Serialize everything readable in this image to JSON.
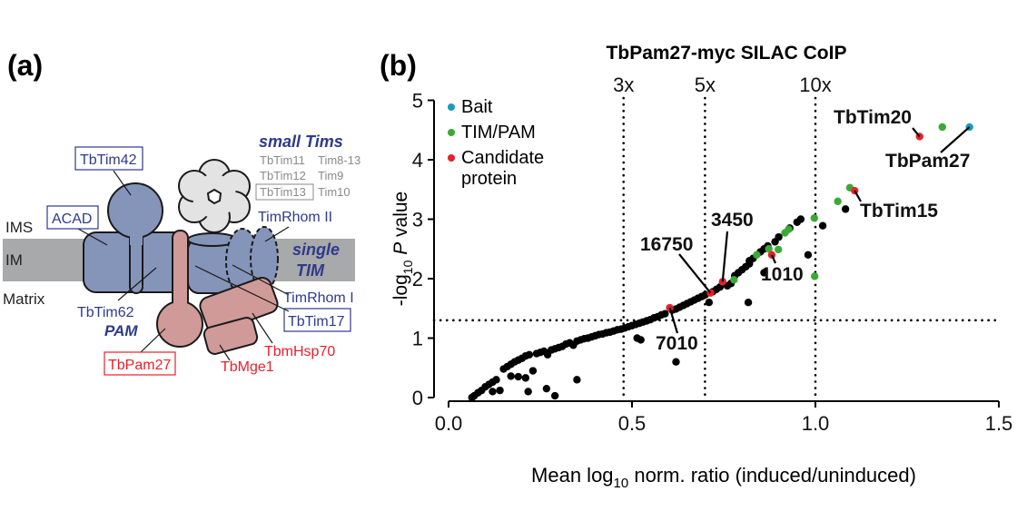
{
  "panel_a": {
    "label": "(a)",
    "compartments": {
      "ims": "IMS",
      "im": "IM",
      "matrix": "Matrix"
    },
    "proteins": {
      "tbtim42": "TbTim42",
      "acad": "ACAD",
      "tbtim62": "TbTim62",
      "pam": "PAM",
      "tbpam27": "TbPam27",
      "tbmge1": "TbMge1",
      "tbmhsp70": "TbmHsp70",
      "tbtim17": "TbTim17",
      "timrhom1": "TimRhom I",
      "timrhom2": "TimRhom II",
      "single_tim": [
        "single",
        "TIM"
      ],
      "small_tims": "small Tims",
      "small_tim_rows": [
        [
          "TbTim11",
          "Tim8-13"
        ],
        [
          "TbTim12",
          "Tim9"
        ],
        [
          "TbTim13",
          "Tim10"
        ]
      ]
    },
    "colors": {
      "membrane": "#a7a9ab",
      "complex": "#8594b9",
      "pam": "#cf9a98",
      "small_tims": "#e3e3e3",
      "blue_text": "#2e3a8c",
      "red_text": "#e8202a"
    }
  },
  "chart_data": {
    "type": "scatter",
    "panel_label": "(b)",
    "title": "TbPam27-myc SILAC CoIP",
    "xlabel": {
      "pre": "Mean log",
      "sub": "10",
      "post": " norm. ratio (induced/uninduced)"
    },
    "ylabel": {
      "pre": "-log",
      "sub": "10",
      "italic": "P",
      "post": " value"
    },
    "xlim": [
      0,
      1.5
    ],
    "ylim": [
      0,
      5
    ],
    "xticks": [
      "0.0",
      "0.5",
      "1.0",
      "1.5"
    ],
    "xtick_values": [
      0,
      0.5,
      1.0,
      1.5
    ],
    "yticks": [
      "0",
      "1",
      "2",
      "3",
      "4",
      "5"
    ],
    "ytick_values": [
      0,
      1,
      2,
      3,
      4,
      5
    ],
    "reference_lines": {
      "vertical": [
        {
          "x": 0.477,
          "label": "3x"
        },
        {
          "x": 0.699,
          "label": "5x"
        },
        {
          "x": 1.0,
          "label": "10x"
        }
      ],
      "horizontal": [
        {
          "y": 1.3
        }
      ]
    },
    "legend": {
      "position": "top-left",
      "entries": [
        {
          "label": "Bait",
          "color": "#1a9bbf"
        },
        {
          "label": "TIM/PAM",
          "color": "#3aaa35"
        },
        {
          "label": "Candidate protein",
          "label_lines": [
            "Candidate",
            "protein"
          ],
          "color": "#e8202a"
        }
      ]
    },
    "series": [
      {
        "category": "other",
        "color": "#000000",
        "points": [
          [
            0.064,
            0.0
          ],
          [
            0.07,
            0.03
          ],
          [
            0.08,
            0.08
          ],
          [
            0.09,
            0.12
          ],
          [
            0.1,
            0.18
          ],
          [
            0.11,
            0.22
          ],
          [
            0.12,
            0.26
          ],
          [
            0.13,
            0.3
          ],
          [
            0.12,
            0.1
          ],
          [
            0.14,
            0.12
          ],
          [
            0.15,
            0.48
          ],
          [
            0.16,
            0.52
          ],
          [
            0.17,
            0.56
          ],
          [
            0.18,
            0.6
          ],
          [
            0.19,
            0.63
          ],
          [
            0.2,
            0.66
          ],
          [
            0.21,
            0.7
          ],
          [
            0.22,
            0.72
          ],
          [
            0.17,
            0.36
          ],
          [
            0.19,
            0.35
          ],
          [
            0.21,
            0.33
          ],
          [
            0.23,
            0.45
          ],
          [
            0.24,
            0.74
          ],
          [
            0.25,
            0.76
          ],
          [
            0.26,
            0.78
          ],
          [
            0.27,
            0.72
          ],
          [
            0.28,
            0.8
          ],
          [
            0.29,
            0.82
          ],
          [
            0.3,
            0.84
          ],
          [
            0.31,
            0.86
          ],
          [
            0.32,
            0.9
          ],
          [
            0.33,
            0.92
          ],
          [
            0.34,
            0.88
          ],
          [
            0.35,
            0.95
          ],
          [
            0.36,
            0.97
          ],
          [
            0.37,
            0.99
          ],
          [
            0.38,
            1.0
          ],
          [
            0.39,
            1.02
          ],
          [
            0.4,
            1.04
          ],
          [
            0.41,
            1.06
          ],
          [
            0.42,
            1.07
          ],
          [
            0.43,
            1.09
          ],
          [
            0.44,
            1.1
          ],
          [
            0.45,
            1.12
          ],
          [
            0.46,
            1.14
          ],
          [
            0.47,
            1.15
          ],
          [
            0.48,
            1.17
          ],
          [
            0.49,
            1.19
          ],
          [
            0.5,
            1.21
          ],
          [
            0.51,
            1.23
          ],
          [
            0.52,
            1.25
          ],
          [
            0.53,
            1.27
          ],
          [
            0.54,
            1.29
          ],
          [
            0.55,
            1.31
          ],
          [
            0.56,
            1.34
          ],
          [
            0.57,
            1.36
          ],
          [
            0.58,
            1.39
          ],
          [
            0.59,
            1.41
          ],
          [
            0.61,
            1.47
          ],
          [
            0.62,
            1.49
          ],
          [
            0.63,
            1.52
          ],
          [
            0.64,
            1.55
          ],
          [
            0.65,
            1.58
          ],
          [
            0.66,
            1.61
          ],
          [
            0.67,
            1.64
          ],
          [
            0.68,
            1.67
          ],
          [
            0.69,
            1.7
          ],
          [
            0.7,
            1.73
          ],
          [
            0.71,
            1.6
          ],
          [
            0.72,
            1.78
          ],
          [
            0.73,
            1.82
          ],
          [
            0.74,
            1.86
          ],
          [
            0.76,
            1.88
          ],
          [
            0.77,
            1.92
          ],
          [
            0.78,
            2.05
          ],
          [
            0.79,
            2.1
          ],
          [
            0.8,
            2.15
          ],
          [
            0.81,
            2.2
          ],
          [
            0.82,
            2.3
          ],
          [
            0.83,
            2.34
          ],
          [
            0.85,
            2.45
          ],
          [
            0.86,
            2.5
          ],
          [
            0.87,
            2.55
          ],
          [
            0.89,
            2.62
          ],
          [
            0.9,
            2.7
          ],
          [
            0.93,
            2.85
          ],
          [
            0.95,
            2.95
          ],
          [
            0.96,
            3.0
          ],
          [
            0.86,
            2.1
          ],
          [
            0.82,
            2.25
          ],
          [
            0.064,
            0.0
          ],
          [
            0.217,
            0.1
          ],
          [
            0.267,
            0.15
          ],
          [
            0.29,
            0.03
          ],
          [
            0.35,
            0.3
          ],
          [
            0.514,
            1.0
          ],
          [
            0.524,
            0.97
          ],
          [
            0.62,
            0.6
          ],
          [
            0.817,
            1.6
          ],
          [
            0.98,
            2.4
          ],
          [
            1.02,
            2.89
          ],
          [
            1.082,
            3.17
          ]
        ]
      },
      {
        "category": "TIM/PAM",
        "color": "#3aaa35",
        "points": [
          [
            1.346,
            4.55
          ],
          [
            1.094,
            3.53
          ],
          [
            1.061,
            3.3
          ],
          [
            0.997,
            3.02
          ],
          [
            0.927,
            2.83
          ],
          [
            0.917,
            2.77
          ],
          [
            0.873,
            2.5
          ],
          [
            0.899,
            2.49
          ],
          [
            0.84,
            2.4
          ],
          [
            0.778,
            1.98
          ],
          [
            0.998,
            2.04
          ]
        ]
      },
      {
        "category": "Candidate protein",
        "color": "#e8202a",
        "points": [
          [
            1.284,
            4.39
          ],
          [
            1.107,
            3.48
          ],
          [
            0.747,
            1.95
          ],
          [
            0.714,
            1.76
          ],
          [
            0.881,
            2.4
          ],
          [
            0.603,
            1.51
          ]
        ]
      },
      {
        "category": "Bait",
        "color": "#1a9bbf",
        "points": [
          [
            1.42,
            4.55
          ]
        ]
      }
    ],
    "annotations": [
      {
        "label": "TbTim20",
        "x": 1.284,
        "y": 4.39
      },
      {
        "label": "TbPam27",
        "x": 1.42,
        "y": 4.55
      },
      {
        "label": "TbTim15",
        "x": 1.107,
        "y": 3.48
      },
      {
        "label": "3450",
        "x": 0.747,
        "y": 1.95
      },
      {
        "label": "16750",
        "x": 0.714,
        "y": 1.76
      },
      {
        "label": "1010",
        "x": 0.881,
        "y": 2.4
      },
      {
        "label": "7010",
        "x": 0.603,
        "y": 1.51
      }
    ]
  }
}
